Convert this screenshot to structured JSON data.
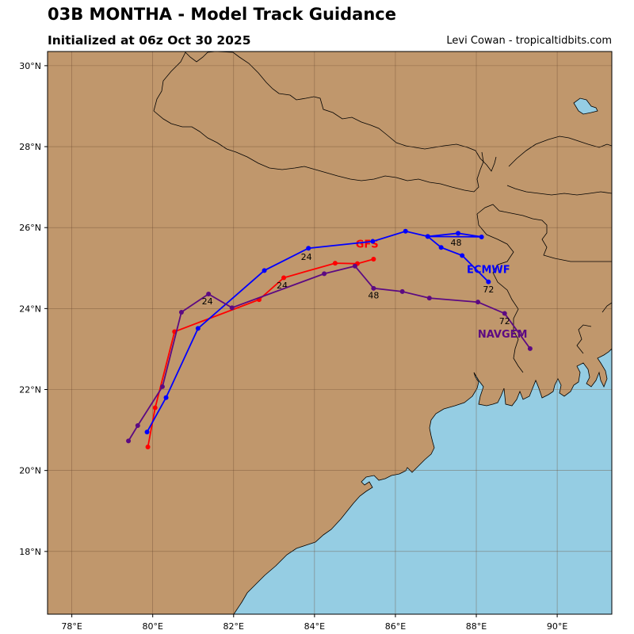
{
  "header": {
    "title": "03B MONTHA - Model Track Guidance",
    "subtitle": "Initialized at 06z Oct 30 2025",
    "credit": "Levi Cowan - tropicaltidbits.com"
  },
  "map": {
    "lon_range": [
      77.4,
      91.35
    ],
    "lat_range": [
      16.45,
      30.35
    ],
    "lon_ticks": [
      {
        "value": 78,
        "label": "78°E"
      },
      {
        "value": 80,
        "label": "80°E"
      },
      {
        "value": 82,
        "label": "82°E"
      },
      {
        "value": 84,
        "label": "84°E"
      },
      {
        "value": 86,
        "label": "86°E"
      },
      {
        "value": 88,
        "label": "88°E"
      },
      {
        "value": 90,
        "label": "90°E"
      }
    ],
    "lat_ticks": [
      {
        "value": 18,
        "label": "18°N"
      },
      {
        "value": 20,
        "label": "20°N"
      },
      {
        "value": 22,
        "label": "22°N"
      },
      {
        "value": 24,
        "label": "24°N"
      },
      {
        "value": 26,
        "label": "26°N"
      },
      {
        "value": 28,
        "label": "28°N"
      },
      {
        "value": 30,
        "label": "30°N"
      }
    ],
    "grid": true,
    "colors": {
      "land": "#c0976c",
      "ocean": "#95cde3",
      "grid": "#6b4a30",
      "border": "#000000"
    }
  },
  "chart_data": {
    "type": "line",
    "x_axis": "longitude (°E)",
    "y_axis": "latitude (°N)",
    "series": [
      {
        "name": "GFS",
        "color": "#ff0000",
        "label": {
          "text": "GFS",
          "lon": 85.3,
          "lat": 25.5
        },
        "points": [
          [
            79.88,
            20.58
          ],
          [
            80.06,
            21.55
          ],
          [
            80.54,
            23.43
          ],
          [
            82.63,
            24.22
          ],
          [
            83.24,
            24.76
          ],
          [
            84.51,
            25.12
          ],
          [
            85.06,
            25.11
          ],
          [
            85.46,
            25.22
          ]
        ],
        "hour_labels": [
          {
            "text": "24",
            "lon": 83.2,
            "lat": 24.5
          }
        ]
      },
      {
        "name": "ECMWF",
        "color": "#0000ff",
        "label": {
          "text": "ECMWF",
          "lon": 88.3,
          "lat": 24.88
        },
        "points": [
          [
            79.86,
            20.95
          ],
          [
            80.33,
            21.8
          ],
          [
            81.12,
            23.51
          ],
          [
            82.76,
            24.94
          ],
          [
            83.85,
            25.49
          ],
          [
            85.44,
            25.66
          ],
          [
            86.25,
            25.91
          ],
          [
            86.8,
            25.78
          ],
          [
            87.55,
            25.86
          ],
          [
            88.13,
            25.77
          ],
          [
            86.8,
            25.78
          ],
          [
            87.13,
            25.51
          ],
          [
            87.65,
            25.31
          ],
          [
            88.3,
            24.66
          ]
        ],
        "hour_labels": [
          {
            "text": "24",
            "lon": 83.8,
            "lat": 25.2
          },
          {
            "text": "48",
            "lon": 87.5,
            "lat": 25.55
          },
          {
            "text": "72",
            "lon": 88.3,
            "lat": 24.4
          }
        ]
      },
      {
        "name": "NAVGEM",
        "color": "#5c0a82",
        "label": {
          "text": "NAVGEM",
          "lon": 88.65,
          "lat": 23.28
        },
        "points": [
          [
            79.4,
            20.73
          ],
          [
            79.63,
            21.11
          ],
          [
            80.24,
            22.07
          ],
          [
            80.71,
            23.91
          ],
          [
            81.38,
            24.36
          ],
          [
            81.96,
            24.02
          ],
          [
            84.24,
            24.86
          ],
          [
            85.0,
            25.05
          ],
          [
            85.46,
            24.5
          ],
          [
            86.17,
            24.42
          ],
          [
            86.84,
            24.26
          ],
          [
            88.04,
            24.16
          ],
          [
            88.7,
            23.88
          ],
          [
            89.33,
            23.01
          ]
        ],
        "hour_labels": [
          {
            "text": "24",
            "lon": 81.35,
            "lat": 24.1
          },
          {
            "text": "48",
            "lon": 85.46,
            "lat": 24.25
          },
          {
            "text": "72",
            "lon": 88.7,
            "lat": 23.62
          }
        ]
      }
    ]
  }
}
